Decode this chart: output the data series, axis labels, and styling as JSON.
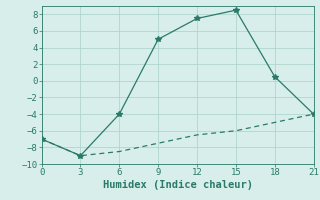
{
  "xlabel": "Humidex (Indice chaleur)",
  "line1_x": [
    0,
    3,
    6,
    9,
    12,
    15,
    18,
    21
  ],
  "line1_y": [
    -7,
    -9,
    -4,
    5,
    7.5,
    8.5,
    0.5,
    -4
  ],
  "line2_x": [
    0,
    3,
    6,
    9,
    12,
    15,
    18,
    21
  ],
  "line2_y": [
    -7,
    -9,
    -8.5,
    -7.5,
    -6.5,
    -6,
    -5,
    -4
  ],
  "line_color": "#2a7a6a",
  "bg_color": "#d8eeea",
  "grid_color": "#b0d5cd",
  "xlim": [
    0,
    21
  ],
  "ylim": [
    -10,
    9
  ],
  "xticks": [
    0,
    3,
    6,
    9,
    12,
    15,
    18,
    21
  ],
  "yticks": [
    -10,
    -8,
    -6,
    -4,
    -2,
    0,
    2,
    4,
    6,
    8
  ],
  "marker": "*",
  "marker_size": 4,
  "linewidth": 0.9,
  "tick_fontsize": 6.5,
  "xlabel_fontsize": 7.5
}
